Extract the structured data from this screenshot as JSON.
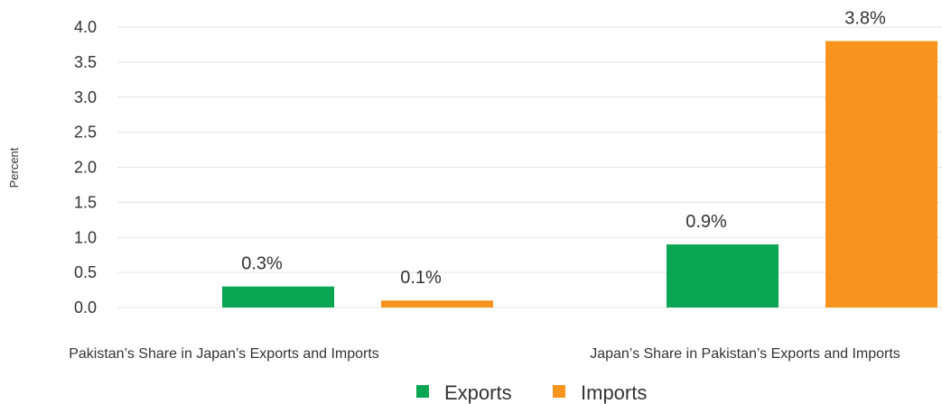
{
  "chart_data": {
    "type": "bar",
    "categories": [
      "Pakistan’s Share in Japan’s Exports and Imports",
      "Japan’s Share in Pakistan’s Exports and Imports"
    ],
    "series": [
      {
        "name": "Exports",
        "values": [
          0.3,
          0.9
        ],
        "labels": [
          "0.3%",
          "0.9%"
        ],
        "color": "#0aa651"
      },
      {
        "name": "Imports",
        "values": [
          0.1,
          3.8
        ],
        "labels": [
          "0.1%",
          "3.8%"
        ],
        "color": "#f7941d"
      }
    ],
    "ylabel": "Percent",
    "ylim": [
      0,
      4.0
    ],
    "yticks": [
      "0.0",
      "0.5",
      "1.0",
      "1.5",
      "2.0",
      "2.5",
      "3.0",
      "3.5",
      "4.0"
    ],
    "grid": true,
    "legend_position": "bottom-center"
  }
}
